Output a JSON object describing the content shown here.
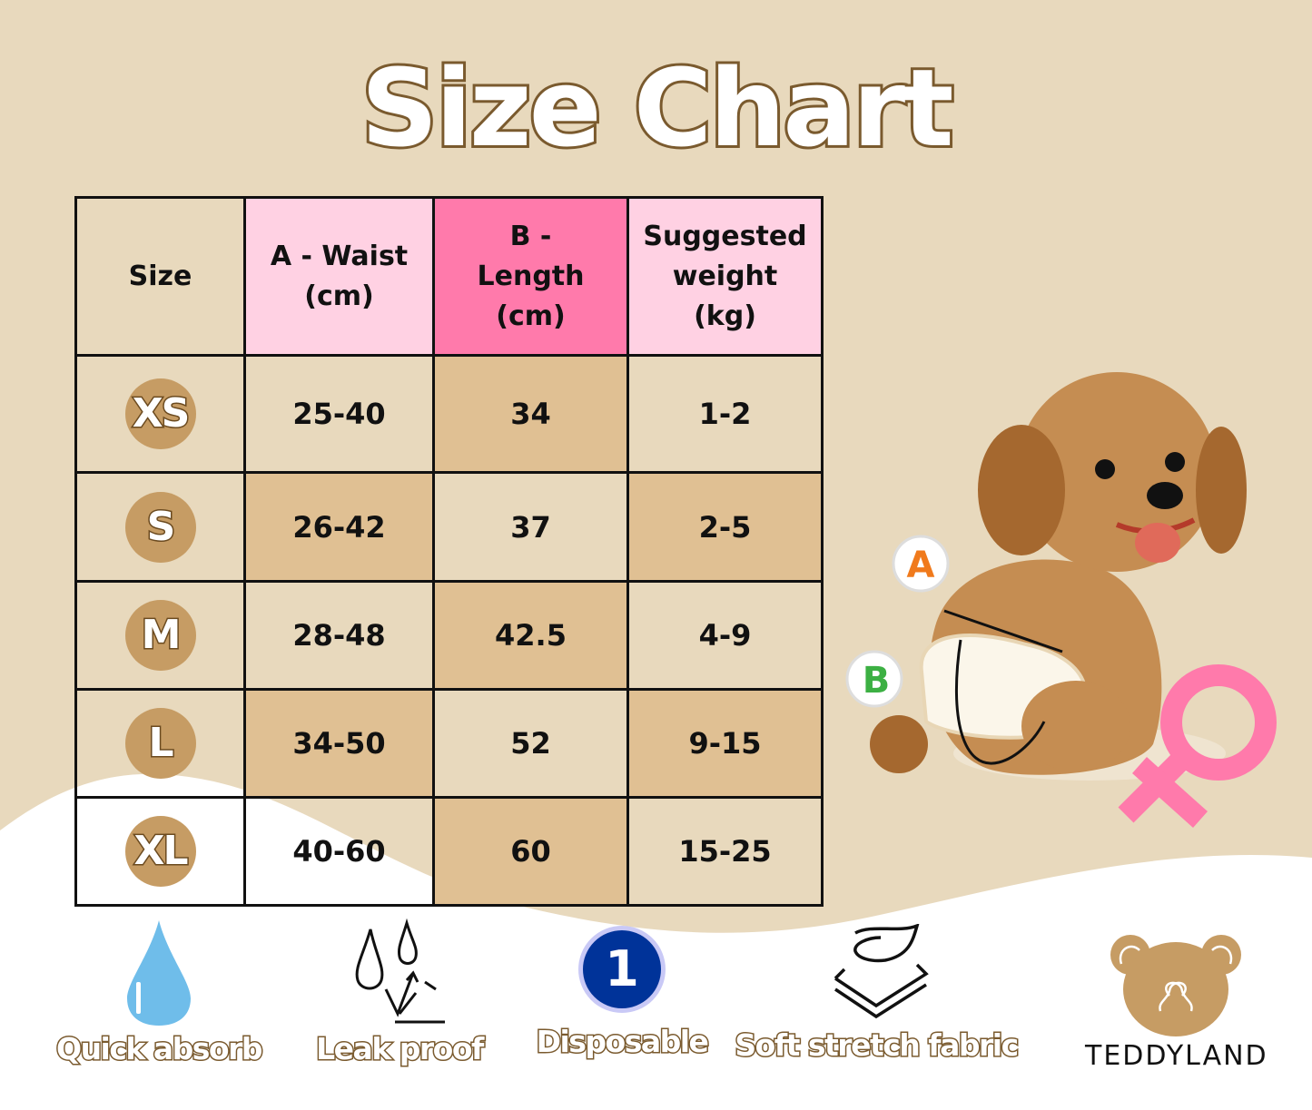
{
  "title": "Size Chart",
  "colors": {
    "background": "#e8d9bd",
    "cell_dark": "#e0c093",
    "header_pink": "#ffd1e3",
    "header_hot_pink": "#ff7aab",
    "badge": "#c69c64",
    "outline_brown": "#7a5a2e"
  },
  "table": {
    "headers": [
      "Size",
      "A - Waist (cm)",
      "B - Length (cm)",
      "Suggested weight (kg)"
    ],
    "rows": [
      {
        "size": "XS",
        "waist": "25-40",
        "length": "34",
        "weight": "1-2"
      },
      {
        "size": "S",
        "waist": "26-42",
        "length": "37",
        "weight": "2-5"
      },
      {
        "size": "M",
        "waist": "28-48",
        "length": "42.5",
        "weight": "4-9"
      },
      {
        "size": "L",
        "waist": "34-50",
        "length": "52",
        "weight": "9-15"
      },
      {
        "size": "XL",
        "waist": "40-60",
        "length": "60",
        "weight": "15-25"
      }
    ]
  },
  "illustration": {
    "label_a": "A",
    "label_b": "B",
    "icon": "female-symbol-icon"
  },
  "features": [
    {
      "label": "Quick absorb",
      "icon": "water-drop-icon"
    },
    {
      "label": "Leak proof",
      "icon": "leak-proof-icon"
    },
    {
      "label": "Disposable",
      "icon": "number-one-icon",
      "icon_text": "1"
    },
    {
      "label": "Soft stretch fabric",
      "icon": "fabric-layers-icon"
    }
  ],
  "brand": {
    "name": "TEDDYLAND",
    "icon": "bear-logo-icon"
  }
}
